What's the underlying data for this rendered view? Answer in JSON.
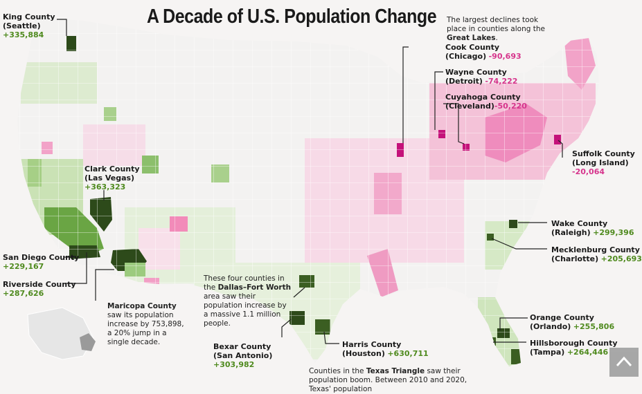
{
  "title": "A Decade of U.S. Population Change",
  "great_lakes_note": {
    "pre": "The largest declines took place in counties along the ",
    "highlight": "Great Lakes",
    "post": "."
  },
  "dfw_note": {
    "pre": "These four counties in the ",
    "highlight": "Dallas–Fort Worth",
    "post": " area saw their population increase by a massive 1.1 million people."
  },
  "maricopa_note": {
    "highlight": "Maricopa County",
    "post": " saw its population increase by 753,898, a 20% jump in a single decade."
  },
  "texas_note": {
    "pre": "Counties in the ",
    "highlight": "Texas Triangle",
    "post": " saw their population boom. Between 2010 and 2020, Texas' population"
  },
  "counties": {
    "king": {
      "name": "King County",
      "city": "(Seattle)",
      "change": "+335,884"
    },
    "clark": {
      "name": "Clark County",
      "city": "(Las Vegas)",
      "change": "+363,323"
    },
    "san_diego": {
      "name": "San Diego County",
      "change": "+229,167"
    },
    "riverside": {
      "name": "Riverside County",
      "change": "+287,626"
    },
    "bexar": {
      "name": "Bexar County",
      "city": "(San Antonio)",
      "change": "+303,982"
    },
    "harris": {
      "name": "Harris County",
      "city": "(Houston)",
      "change": "+630,711"
    },
    "cook": {
      "name": "Cook County",
      "city": "(Chicago)",
      "change": "-90,693"
    },
    "wayne": {
      "name": "Wayne County",
      "city": "(Detroit)",
      "change": "-74,222"
    },
    "cuyahoga": {
      "name": "Cuyahoga County",
      "city": "(Cleveland)",
      "change": "-50,220"
    },
    "suffolk": {
      "name": "Suffolk County",
      "city": "(Long Island)",
      "change": "-20,064"
    },
    "wake": {
      "name": "Wake County",
      "city": "(Raleigh)",
      "change": "+299,396"
    },
    "mecklenburg": {
      "name": "Mecklenburg County",
      "city": "(Charlotte)",
      "change": "+205,693"
    },
    "orange": {
      "name": "Orange County",
      "city": "(Orlando)",
      "change": "+255,806"
    },
    "hillsborough": {
      "name": "Hillsborough County",
      "city": "(Tampa)",
      "change": "+264,446"
    }
  },
  "colors": {
    "strong_growth": "#2d4a1a",
    "growth": "#5f9a3a",
    "mild_growth": "#b9d9a0",
    "strong_decline": "#c4127a",
    "decline": "#ef8cbd",
    "mild_decline": "#f7cfe0",
    "neutral": "#f3f2f1",
    "label_green": "#4f8a1e",
    "label_pink": "#d6348c"
  },
  "scroll_button_icon": "chevron-up-icon"
}
